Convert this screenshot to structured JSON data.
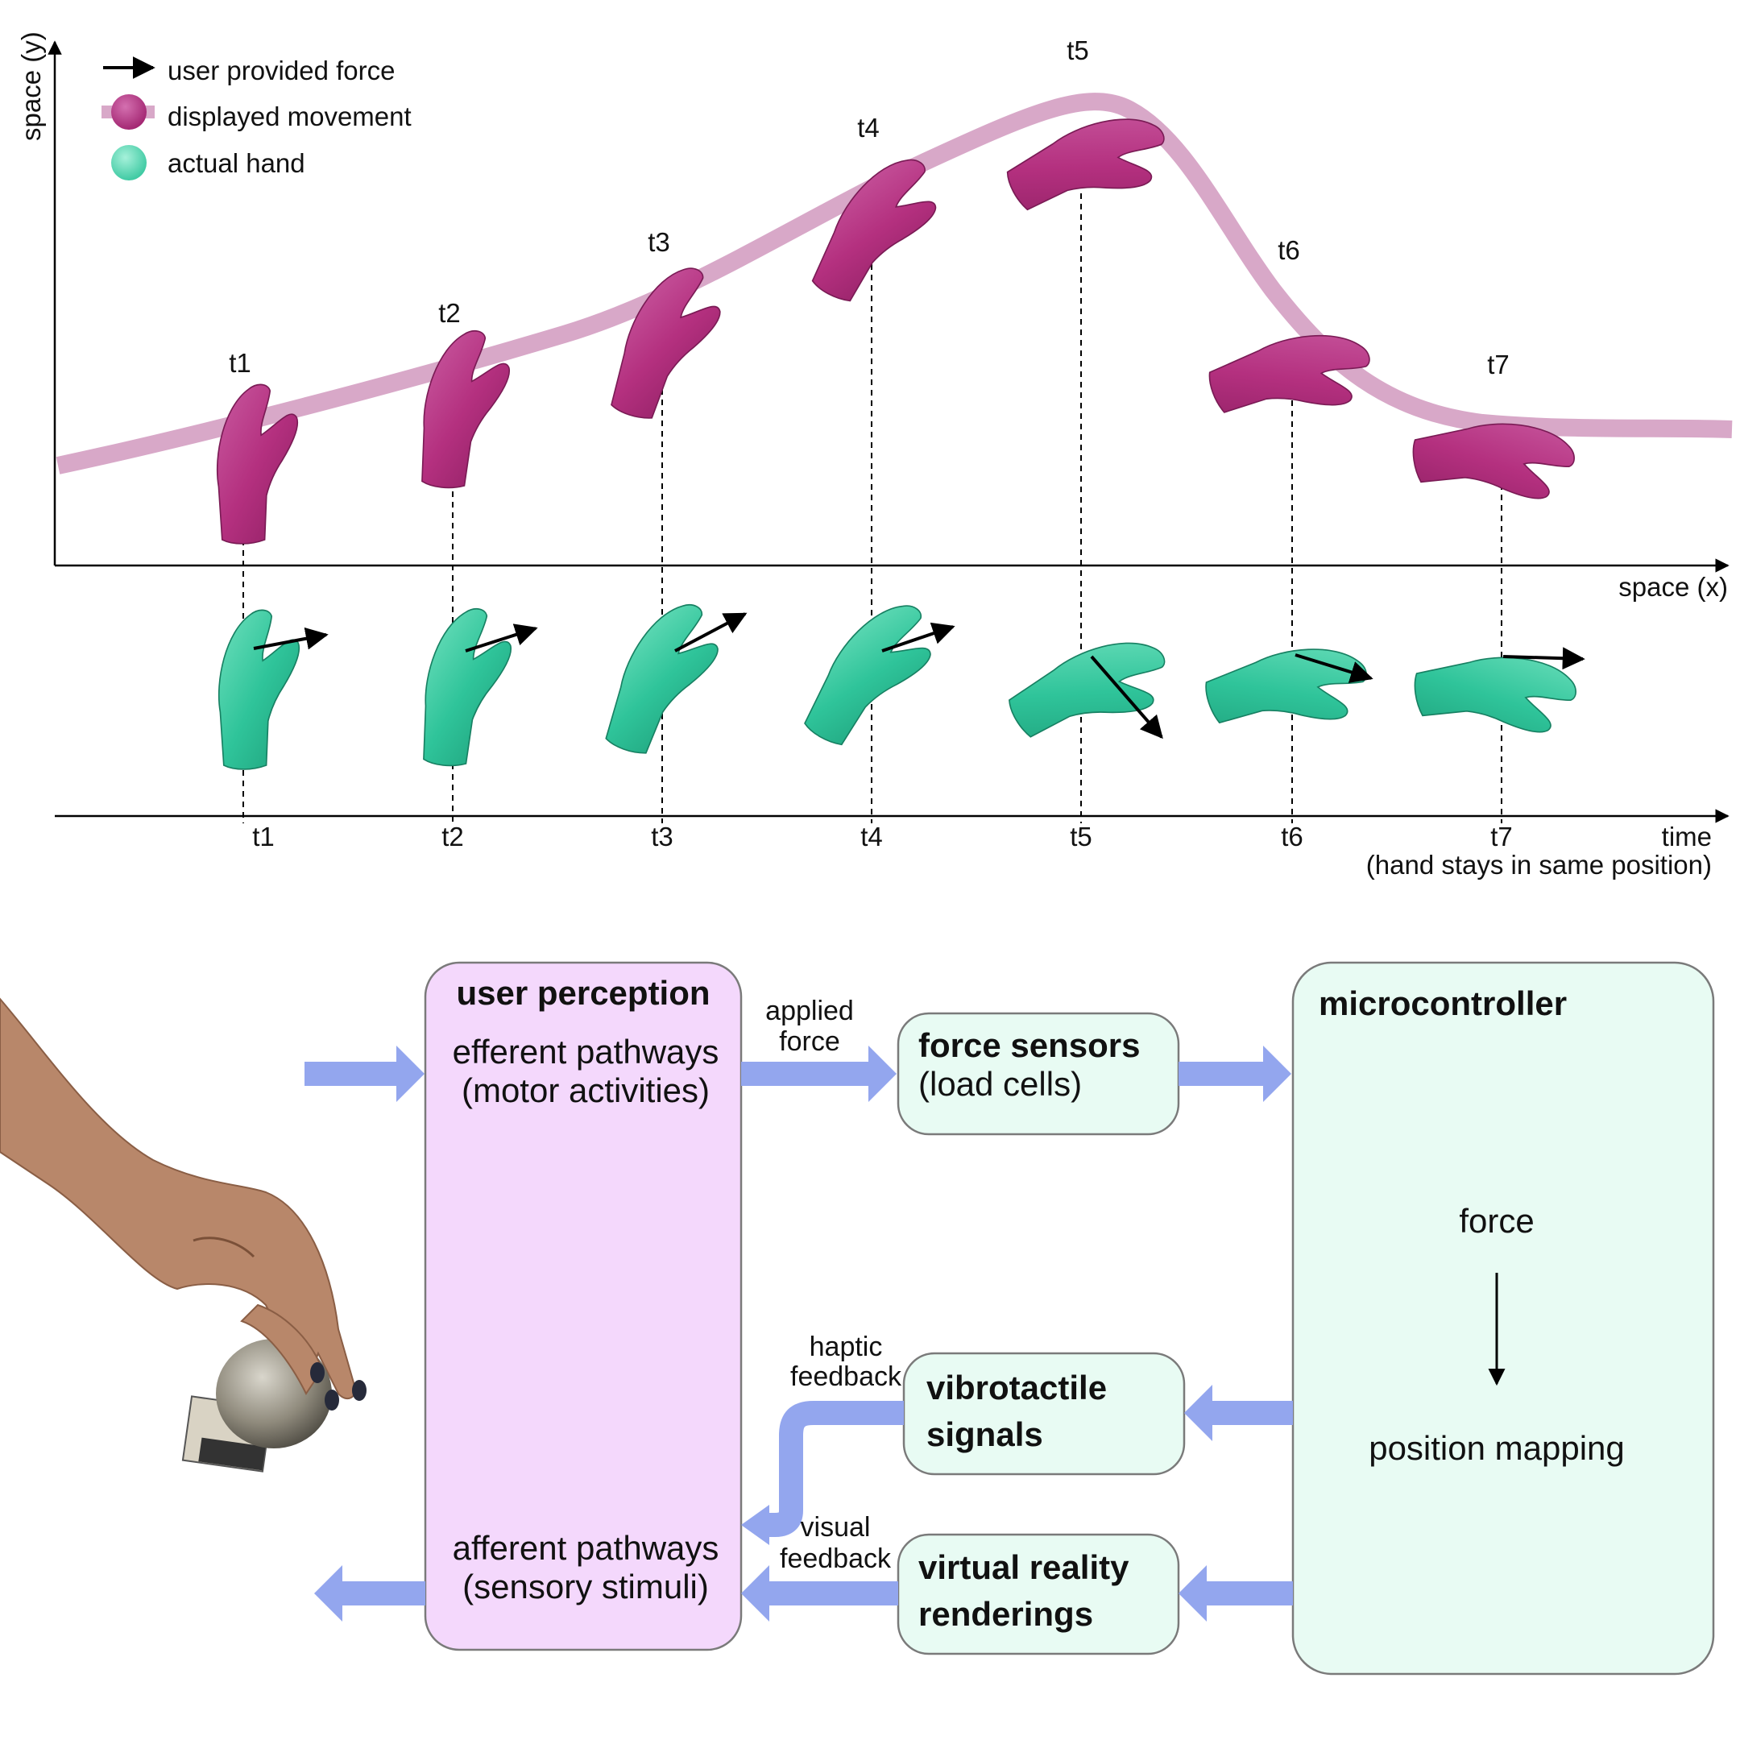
{
  "legend": {
    "force": "user provided force",
    "displayed": "displayed movement",
    "actual": "actual hand"
  },
  "axes": {
    "y_label": "space (y)",
    "x_label": "space (x)",
    "time_label": "time",
    "time_note": "(hand stays in same position)"
  },
  "time_points": [
    "t1",
    "t2",
    "t3",
    "t4",
    "t5",
    "t6",
    "t7"
  ],
  "colors": {
    "displayed_hand": "#b4307f",
    "path": "#d8a8c8",
    "actual_hand": "#2fc49a",
    "arrow_blue": "#93a6ee",
    "perception_fill": "#f4d8fc",
    "device_fill": "#e8fbf3"
  },
  "icons": {
    "displayed_hand": "magenta-hand-icon",
    "actual_hand": "green-hand-icon",
    "user_hand_photo": "user-hand-on-ball-icon"
  },
  "diagram": {
    "perception": {
      "title": "user perception",
      "efferent_line1": "efferent pathways",
      "efferent_line2": "(motor activities)",
      "afferent_line1": "afferent pathways",
      "afferent_line2": "(sensory stimuli)"
    },
    "applied_force": {
      "line1": "applied",
      "line2": "force"
    },
    "force_sensors": {
      "title": "force sensors",
      "subtitle": "(load cells)"
    },
    "microcontroller": {
      "title": "microcontroller",
      "from": "force",
      "to": "position mapping"
    },
    "vibrotactile": {
      "line1": "vibrotactile",
      "line2": "signals"
    },
    "haptic_feedback": {
      "line1": "haptic",
      "line2": "feedback"
    },
    "vr": {
      "line1": "virtual reality",
      "line2": "renderings"
    },
    "visual_feedback": {
      "line1": "visual",
      "line2": "feedback"
    }
  }
}
